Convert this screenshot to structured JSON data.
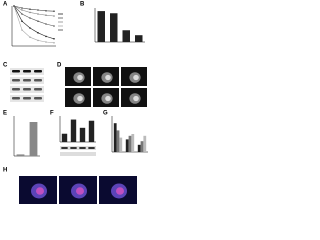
{
  "panels": [
    {
      "letter": "A",
      "type": "line",
      "ylim": [
        0,
        100
      ],
      "series": [
        {
          "color": "#222222",
          "values": [
            100,
            62,
            45,
            33,
            24,
            18
          ]
        },
        {
          "color": "#555555",
          "values": [
            100,
            80,
            70,
            62,
            55,
            50
          ]
        },
        {
          "color": "#888888",
          "values": [
            100,
            90,
            84,
            80,
            77,
            75
          ]
        },
        {
          "color": "#aaaaaa",
          "values": [
            100,
            40,
            22,
            14,
            10,
            8
          ]
        },
        {
          "color": "#444444",
          "values": [
            100,
            95,
            92,
            90,
            88,
            87
          ]
        }
      ]
    },
    {
      "letter": "B",
      "type": "bar",
      "ylim": [
        0,
        110
      ],
      "color": "#222222",
      "values": [
        100,
        93,
        38,
        22
      ]
    },
    {
      "letter": "C",
      "type": "blot"
    },
    {
      "letter": "D",
      "type": "micro"
    },
    {
      "letter": "E",
      "type": "bar",
      "ylim": [
        0,
        100
      ],
      "color": "#888888",
      "values": [
        4,
        85
      ]
    },
    {
      "letter": "F",
      "type": "bar",
      "ylim": [
        0,
        110
      ],
      "color": "#222222",
      "values": [
        35,
        95,
        60,
        90
      ]
    },
    {
      "letter": "G",
      "type": "grouped",
      "ylim": [
        0,
        100
      ],
      "series": [
        {
          "color": "#222222",
          "values": [
            80,
            35,
            20
          ]
        },
        {
          "color": "#777777",
          "values": [
            60,
            45,
            30
          ]
        },
        {
          "color": "#bbbbbb",
          "values": [
            40,
            50,
            45
          ]
        }
      ]
    },
    {
      "letter": "H",
      "type": "micro"
    }
  ]
}
